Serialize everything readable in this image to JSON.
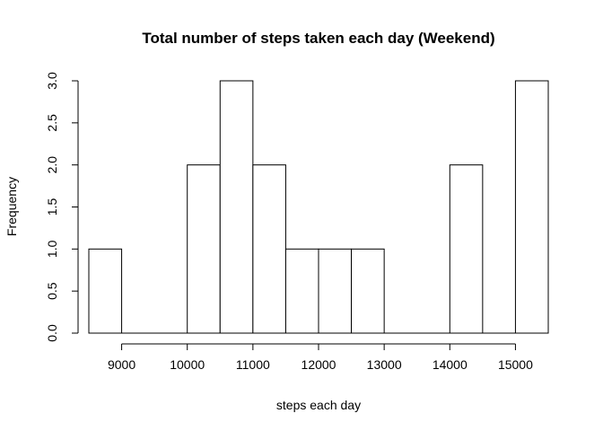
{
  "chart_data": {
    "type": "bar",
    "title": "Total number of steps taken each day (Weekend)",
    "xlabel": "steps each day",
    "ylabel": "Frequency",
    "bins": [
      {
        "start": 8500,
        "end": 9000,
        "count": 1
      },
      {
        "start": 9000,
        "end": 9500,
        "count": 0
      },
      {
        "start": 9500,
        "end": 10000,
        "count": 0
      },
      {
        "start": 10000,
        "end": 10500,
        "count": 2
      },
      {
        "start": 10500,
        "end": 11000,
        "count": 3
      },
      {
        "start": 11000,
        "end": 11500,
        "count": 2
      },
      {
        "start": 11500,
        "end": 12000,
        "count": 1
      },
      {
        "start": 12000,
        "end": 12500,
        "count": 1
      },
      {
        "start": 12500,
        "end": 13000,
        "count": 1
      },
      {
        "start": 13000,
        "end": 13500,
        "count": 0
      },
      {
        "start": 13500,
        "end": 14000,
        "count": 0
      },
      {
        "start": 14000,
        "end": 14500,
        "count": 2
      },
      {
        "start": 14500,
        "end": 15000,
        "count": 0
      },
      {
        "start": 15000,
        "end": 15500,
        "count": 3
      }
    ],
    "xlim": [
      8500,
      15500
    ],
    "ylim": [
      0,
      3
    ],
    "x_ticks": [
      "9000",
      "10000",
      "11000",
      "12000",
      "13000",
      "14000",
      "15000"
    ],
    "y_ticks": [
      "0.0",
      "0.5",
      "1.0",
      "1.5",
      "2.0",
      "2.5",
      "3.0"
    ],
    "grid": false,
    "legend": "none",
    "bar_fill": "#ffffff",
    "bar_stroke": "#000000"
  }
}
